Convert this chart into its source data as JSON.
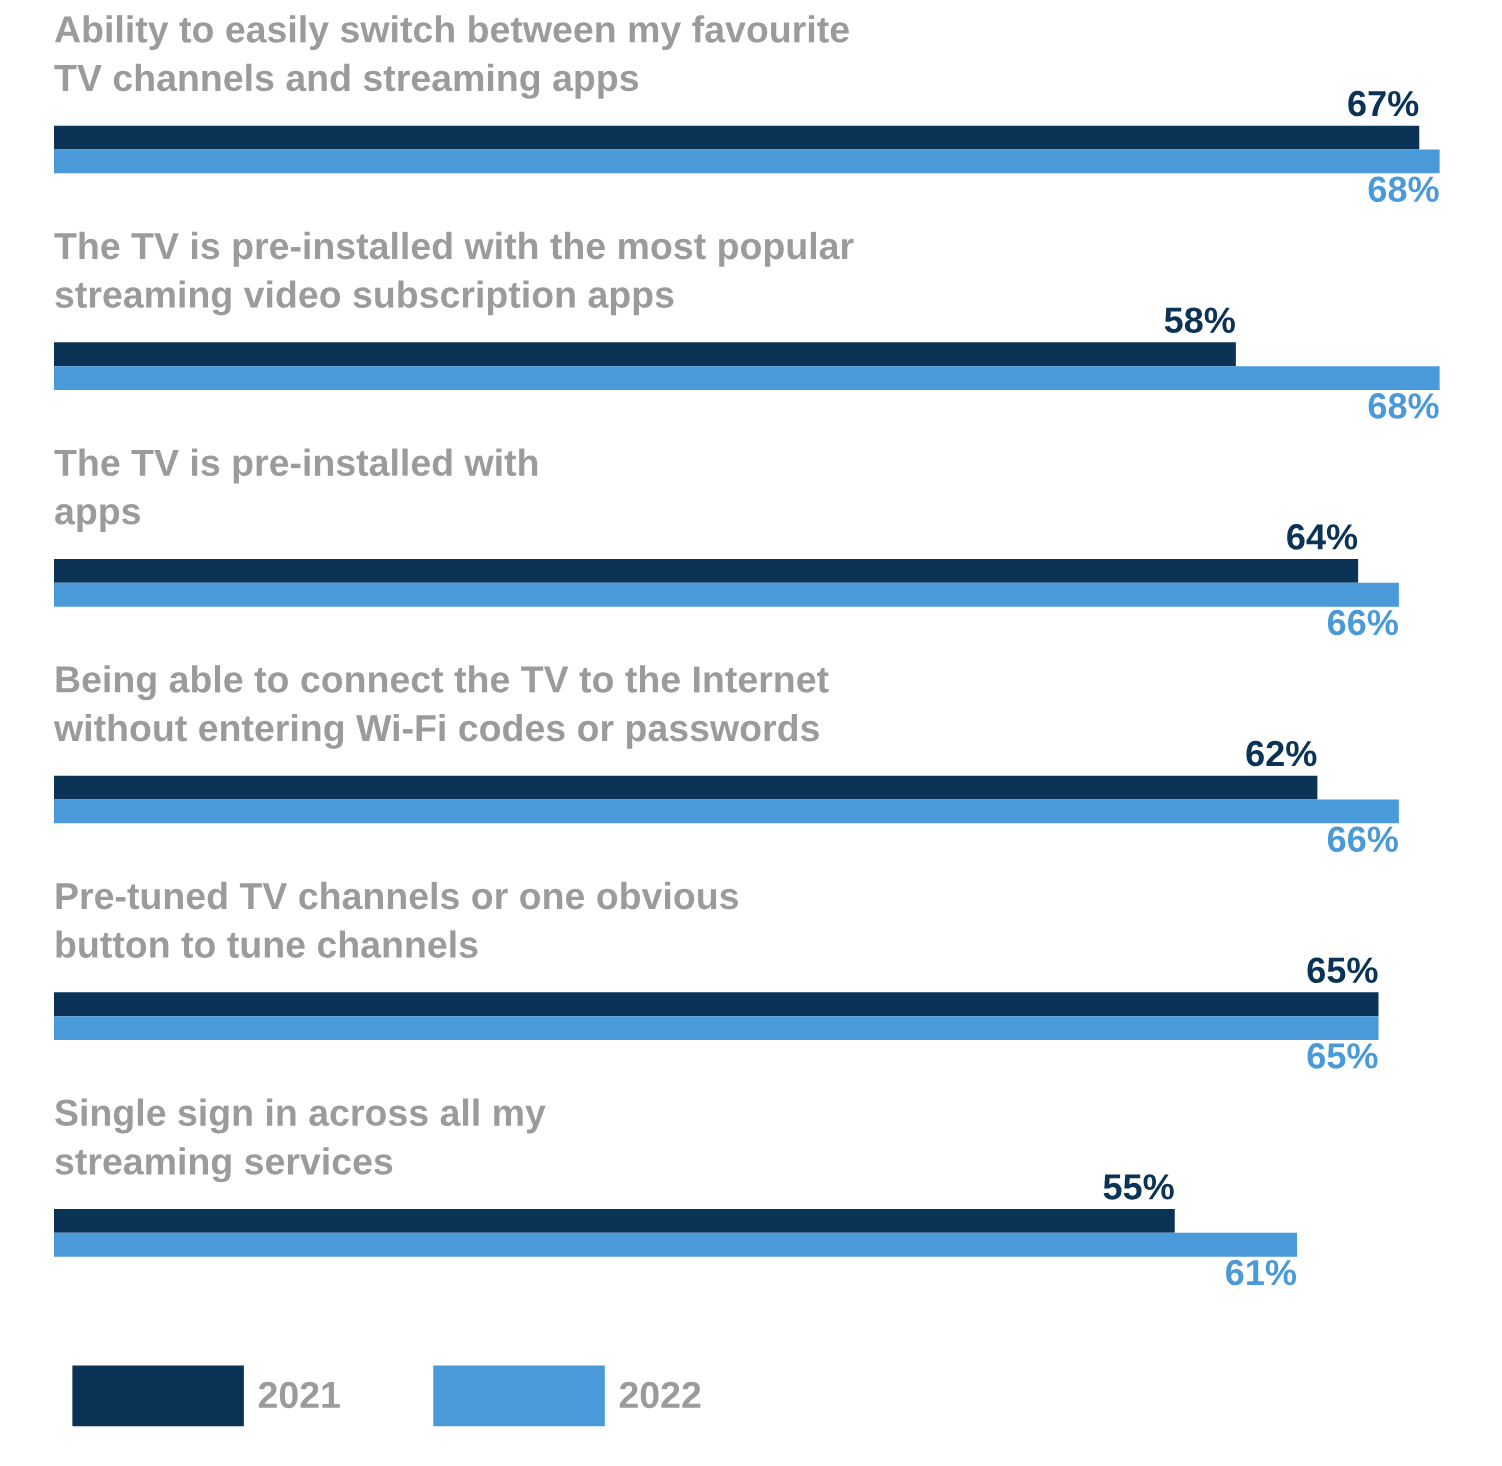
{
  "chart_data": {
    "type": "bar",
    "orientation": "horizontal",
    "data_labels": true,
    "legend": "bottom left",
    "categories": [
      "Ability to easily switch between my favourite\nTV channels and streaming apps",
      "The TV is pre-installed with the most popular\nstreaming video subscription apps",
      "The TV is pre-installed with\napps",
      "Being able to connect the TV to the Internet\nwithout entering Wi-Fi codes or passwords",
      "Pre-tuned TV channels or one obvious\nbutton to tune channels",
      "Single sign in across all my\nstreaming services"
    ],
    "series": [
      {
        "name": "2021",
        "color": "#0b3356",
        "values": [
          67,
          58,
          64,
          62,
          65,
          55
        ],
        "value_labels": [
          "67%",
          "58%",
          "64%",
          "62%",
          "65%",
          "55%"
        ]
      },
      {
        "name": "2022",
        "color": "#4a9ad9",
        "values": [
          68,
          68,
          66,
          66,
          65,
          61
        ],
        "value_labels": [
          "68%",
          "68%",
          "66%",
          "66%",
          "65%",
          "61%"
        ]
      }
    ]
  }
}
